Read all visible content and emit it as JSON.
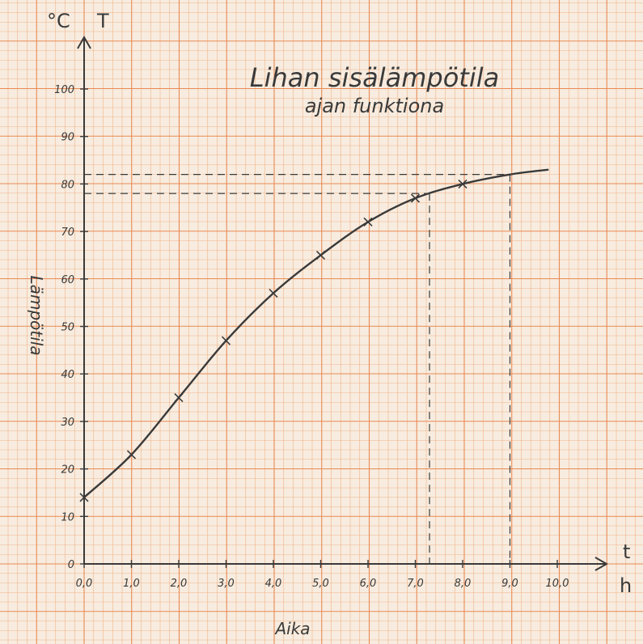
{
  "chart_data": {
    "type": "line",
    "title": "Lihan sisälämpötila",
    "subtitle": "ajan funktiona",
    "xlabel": "Aika",
    "ylabel": "Lämpötila",
    "x_axis_symbol": "t",
    "x_axis_unit": "h",
    "y_axis_symbol": "T",
    "y_axis_unit": "°C",
    "xlim": [
      0,
      10.0
    ],
    "ylim": [
      0,
      100
    ],
    "x_tick_labels": [
      "0,0",
      "1,0",
      "2,0",
      "3,0",
      "4,0",
      "5,0",
      "6,0",
      "7,0",
      "8,0",
      "9,0",
      "10,0"
    ],
    "x_ticks": [
      0,
      1,
      2,
      3,
      4,
      5,
      6,
      7,
      8,
      9,
      10
    ],
    "y_ticks": [
      0,
      10,
      20,
      30,
      40,
      50,
      60,
      70,
      80,
      90,
      100
    ],
    "y_tick_labels": [
      "0",
      "10",
      "20",
      "30",
      "40",
      "50",
      "60",
      "70",
      "80",
      "90",
      "100"
    ],
    "grid": true,
    "series": [
      {
        "x": [
          0,
          1,
          2,
          3,
          4,
          5,
          6,
          7,
          8,
          9,
          9.8
        ],
        "y": [
          14,
          23,
          35,
          47,
          57,
          65,
          72,
          77,
          80,
          82,
          83
        ],
        "markers": [
          true,
          true,
          true,
          true,
          true,
          true,
          true,
          true,
          true,
          false,
          false
        ]
      }
    ],
    "reference_lines": [
      {
        "value_y": 78,
        "value_x": 7.3
      },
      {
        "value_y": 82,
        "value_x": 9.0
      }
    ]
  },
  "colors": {
    "paper": "#f7ecdf",
    "grid_fine": "#f2b48a",
    "grid_major": "#e98a55",
    "ink": "#3a3a3a"
  }
}
